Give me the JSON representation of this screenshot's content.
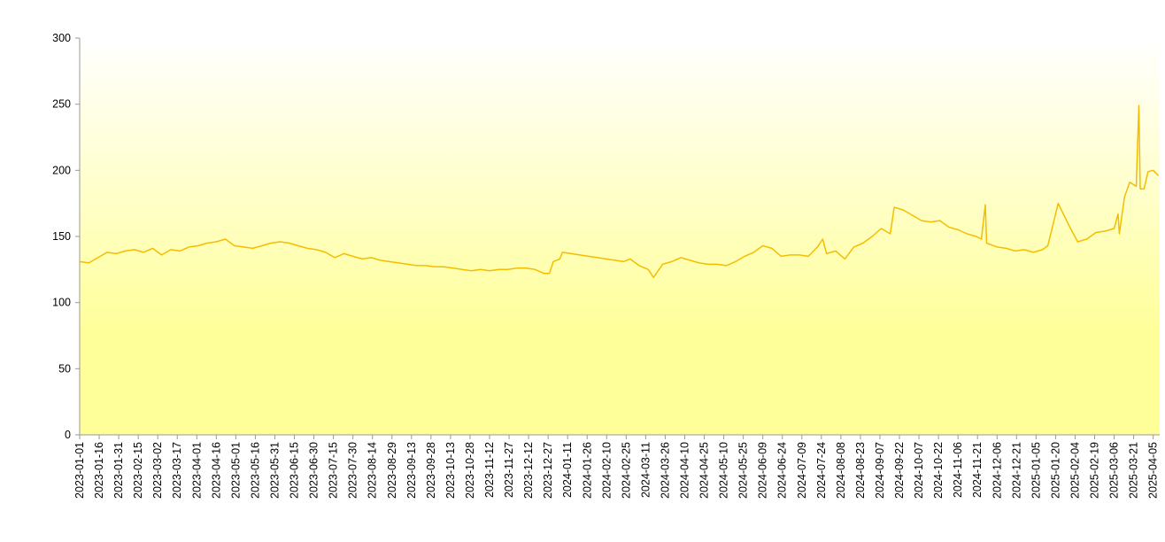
{
  "chart_data": {
    "type": "line",
    "color": "#f5bd00",
    "background": [
      "#ffffff",
      "#ffff99"
    ],
    "x": [
      "2023-01-01",
      "2023-01-08",
      "2023-01-15",
      "2023-01-22",
      "2023-01-29",
      "2023-02-05",
      "2023-02-12",
      "2023-02-19",
      "2023-02-26",
      "2023-03-05",
      "2023-03-12",
      "2023-03-19",
      "2023-03-26",
      "2023-04-02",
      "2023-04-09",
      "2023-04-16",
      "2023-04-23",
      "2023-04-30",
      "2023-05-07",
      "2023-05-14",
      "2023-05-21",
      "2023-05-28",
      "2023-06-04",
      "2023-06-11",
      "2023-06-18",
      "2023-06-25",
      "2023-07-02",
      "2023-07-09",
      "2023-07-16",
      "2023-07-23",
      "2023-07-30",
      "2023-08-06",
      "2023-08-13",
      "2023-08-20",
      "2023-08-27",
      "2023-09-03",
      "2023-09-10",
      "2023-09-17",
      "2023-09-24",
      "2023-10-01",
      "2023-10-08",
      "2023-10-15",
      "2023-10-22",
      "2023-10-29",
      "2023-11-05",
      "2023-11-12",
      "2023-11-19",
      "2023-11-26",
      "2023-12-03",
      "2023-12-10",
      "2023-12-17",
      "2023-12-24",
      "2023-12-28",
      "2023-12-31",
      "2024-01-05",
      "2024-01-07",
      "2024-02-23",
      "2024-02-28",
      "2024-03-06",
      "2024-03-13",
      "2024-03-17",
      "2024-03-24",
      "2024-03-31",
      "2024-04-07",
      "2024-04-14",
      "2024-04-21",
      "2024-04-28",
      "2024-05-05",
      "2024-05-12",
      "2024-05-19",
      "2024-05-26",
      "2024-06-02",
      "2024-06-09",
      "2024-06-16",
      "2024-06-23",
      "2024-06-30",
      "2024-07-07",
      "2024-07-14",
      "2024-07-21",
      "2024-07-25",
      "2024-07-28",
      "2024-08-04",
      "2024-08-11",
      "2024-08-18",
      "2024-08-25",
      "2024-09-01",
      "2024-09-08",
      "2024-09-15",
      "2024-09-18",
      "2024-09-25",
      "2024-10-02",
      "2024-10-09",
      "2024-10-16",
      "2024-10-23",
      "2024-10-30",
      "2024-11-06",
      "2024-11-13",
      "2024-11-20",
      "2024-11-24",
      "2024-11-27",
      "2024-11-28",
      "2024-12-06",
      "2024-12-13",
      "2024-12-20",
      "2024-12-27",
      "2025-01-03",
      "2025-01-10",
      "2025-01-14",
      "2025-01-22",
      "2025-02-01",
      "2025-02-06",
      "2025-02-13",
      "2025-02-20",
      "2025-02-27",
      "2025-03-06",
      "2025-03-09",
      "2025-03-10",
      "2025-03-14",
      "2025-03-18",
      "2025-03-23",
      "2025-03-25",
      "2025-03-26",
      "2025-03-29",
      "2025-04-01",
      "2025-04-05",
      "2025-04-09"
    ],
    "values": [
      131,
      130,
      134,
      138,
      137,
      139,
      140,
      138,
      141,
      136,
      140,
      139,
      142,
      143,
      145,
      146,
      148,
      143,
      142,
      141,
      143,
      145,
      146,
      145,
      143,
      141,
      140,
      138,
      134,
      137,
      135,
      133,
      134,
      132,
      131,
      130,
      129,
      128,
      128,
      127,
      127,
      126,
      125,
      124,
      125,
      124,
      125,
      125,
      126,
      126,
      125,
      122,
      122,
      131,
      133,
      138,
      131,
      133,
      128,
      125,
      119,
      129,
      131,
      134,
      132,
      130,
      129,
      129,
      128,
      131,
      135,
      138,
      143,
      141,
      135,
      136,
      136,
      135,
      142,
      148,
      137,
      139,
      133,
      142,
      145,
      150,
      156,
      152,
      172,
      170,
      166,
      162,
      161,
      162,
      157,
      155,
      152,
      150,
      148,
      174,
      145,
      142,
      141,
      139,
      140,
      138,
      140,
      143,
      175,
      155,
      146,
      148,
      153,
      154,
      156,
      167,
      152,
      180,
      191,
      188,
      249,
      186,
      186,
      199,
      200,
      196
    ],
    "xlim": [
      "2023-01-01",
      "2025-04-10"
    ],
    "xticks": [
      "2023-01-01",
      "2023-01-16",
      "2023-01-31",
      "2023-02-15",
      "2023-03-02",
      "2023-03-17",
      "2023-04-01",
      "2023-04-16",
      "2023-05-01",
      "2023-05-16",
      "2023-05-31",
      "2023-06-15",
      "2023-06-30",
      "2023-07-15",
      "2023-07-30",
      "2023-08-14",
      "2023-08-29",
      "2023-09-13",
      "2023-09-28",
      "2023-10-13",
      "2023-10-28",
      "2023-11-12",
      "2023-11-27",
      "2023-12-12",
      "2023-12-27",
      "2024-01-11",
      "2024-01-26",
      "2024-02-10",
      "2024-02-25",
      "2024-03-11",
      "2024-03-26",
      "2024-04-10",
      "2024-04-25",
      "2024-05-10",
      "2024-05-25",
      "2024-06-09",
      "2024-06-24",
      "2024-07-09",
      "2024-07-24",
      "2024-08-08",
      "2024-08-23",
      "2024-09-07",
      "2024-09-22",
      "2024-10-07",
      "2024-10-22",
      "2024-11-06",
      "2024-11-21",
      "2024-12-06",
      "2024-12-21",
      "2025-01-05",
      "2025-01-20",
      "2025-02-04",
      "2025-02-19",
      "2025-03-06",
      "2025-03-21",
      "2025-04-05"
    ],
    "ylim": [
      0,
      300
    ],
    "yticks": [
      0,
      50,
      100,
      150,
      200,
      250,
      300
    ]
  }
}
